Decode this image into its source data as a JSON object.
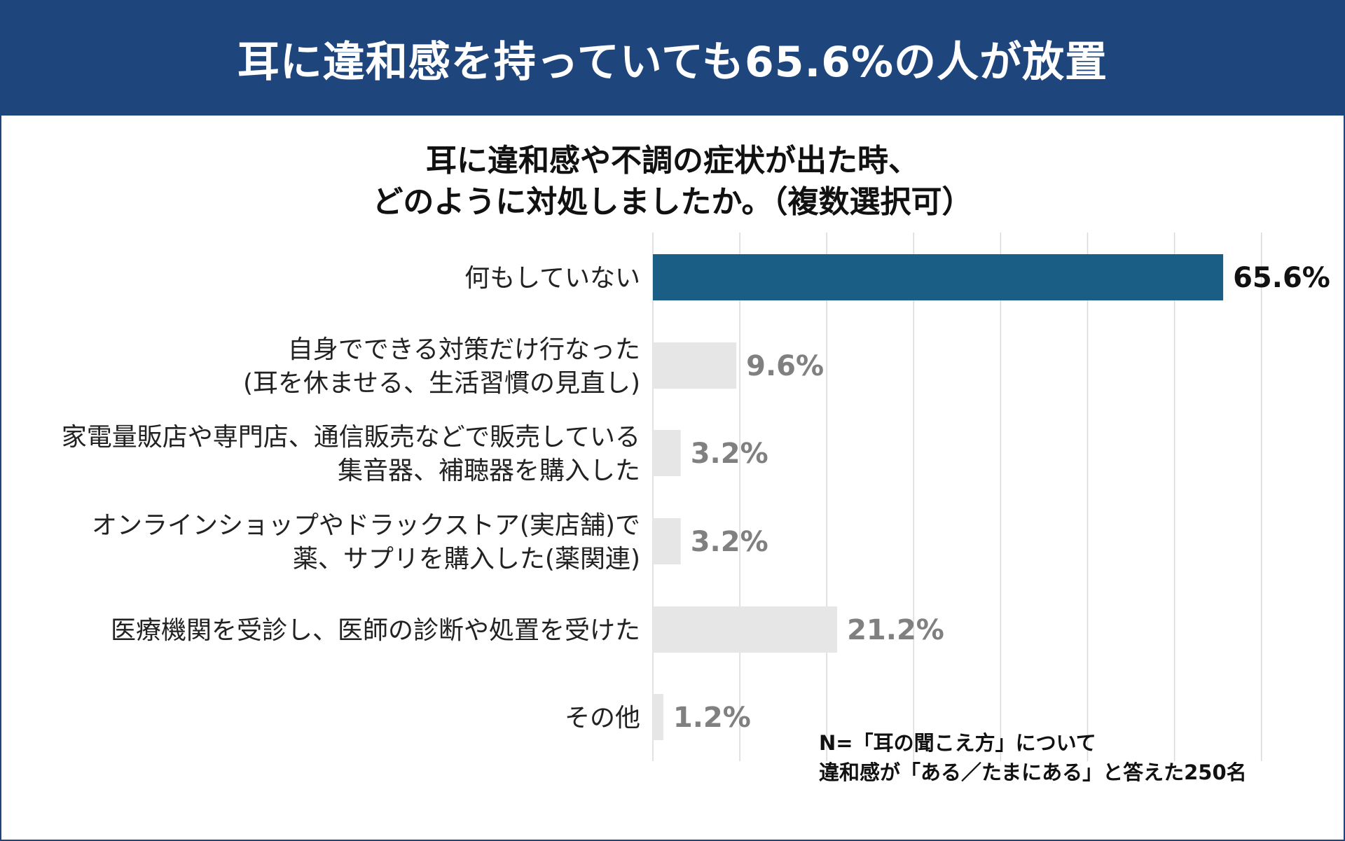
{
  "header": {
    "title": "耳に違和感を持っていても65.6%の人が放置"
  },
  "question": {
    "line1": "耳に違和感や不調の症状が出た時、",
    "line2": "どのように対処しましたか。（複数選択可）"
  },
  "chart_data": {
    "type": "bar",
    "orientation": "horizontal",
    "categories": [
      [
        "何もしていない"
      ],
      [
        "自身でできる対策だけ行なった",
        "(耳を休ませる、生活習慣の見直し)"
      ],
      [
        "家電量販店や専門店、通信販売などで販売している",
        "集音器、補聴器を購入した"
      ],
      [
        "オンラインショップやドラックストア(実店舗)で",
        "薬、サプリを購入した(薬関連)"
      ],
      [
        "医療機関を受診し、医師の診断や処置を受けた"
      ],
      [
        "その他"
      ]
    ],
    "values": [
      65.6,
      9.6,
      3.2,
      3.2,
      21.2,
      1.2
    ],
    "value_labels": [
      "65.6%",
      "9.6%",
      "3.2%",
      "3.2%",
      "21.2%",
      "1.2%"
    ],
    "unit": "%",
    "xlim": [
      0,
      70
    ],
    "grid": true,
    "highlight_index": 0,
    "colors": {
      "highlight": "#1a5e85",
      "other": "#e6e6e6",
      "highlight_label": "#111111",
      "other_label": "#808080",
      "grid": "#d9d9d9"
    }
  },
  "footnote": {
    "line1": "N=「耳の聞こえ方」について",
    "line2": "違和感が「ある／たまにある」と答えた250名"
  },
  "colors": {
    "header_bg": "#1f467c",
    "frame": "#1f467c"
  }
}
